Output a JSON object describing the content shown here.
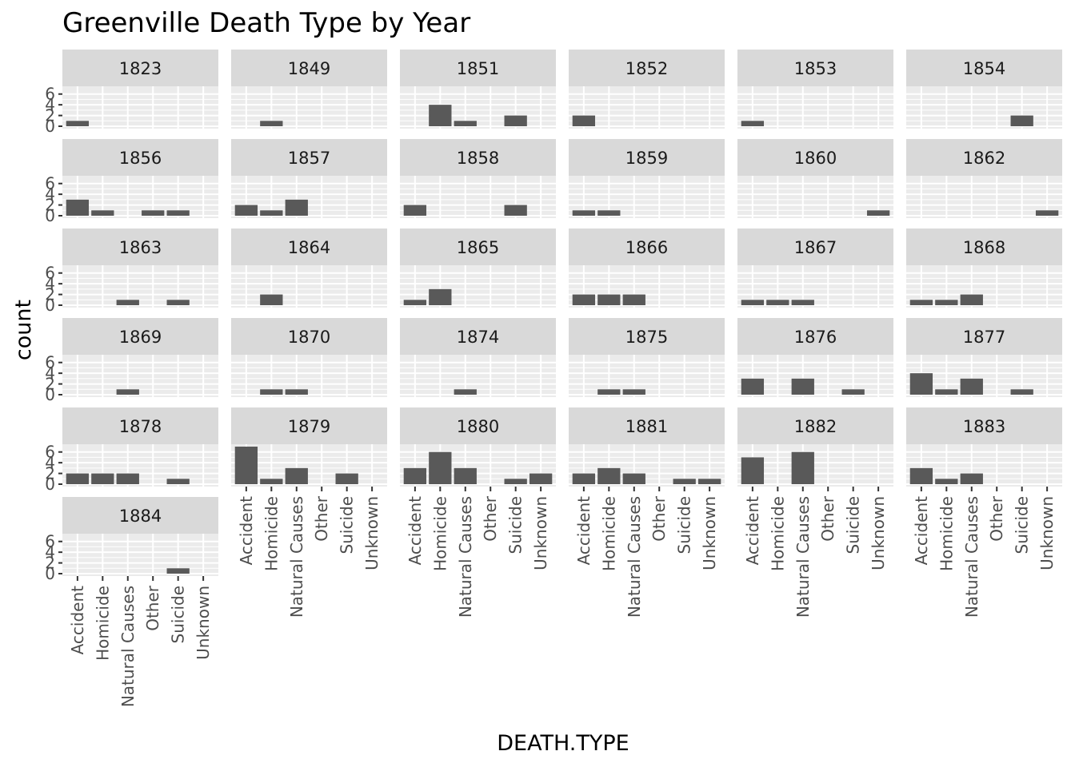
{
  "chart_data": {
    "type": "bar",
    "title": "Greenville Death Type by Year",
    "xlabel": "DEATH.TYPE",
    "ylabel": "count",
    "categories": [
      "Accident",
      "Homicide",
      "Natural Causes",
      "Other",
      "Suicide",
      "Unknown"
    ],
    "yticks": [
      0,
      2,
      4,
      6
    ],
    "ylim": [
      0,
      7
    ],
    "grid": true,
    "legend": "none",
    "colors": {
      "bar": "#595959",
      "panel": "#ebebeb",
      "strip": "#d9d9d9",
      "grid": "#ffffff"
    },
    "facets": [
      {
        "label": "1823",
        "values": [
          1,
          0,
          0,
          0,
          0,
          0
        ]
      },
      {
        "label": "1849",
        "values": [
          0,
          1,
          0,
          0,
          0,
          0
        ]
      },
      {
        "label": "1851",
        "values": [
          0,
          4,
          1,
          0,
          2,
          0
        ]
      },
      {
        "label": "1852",
        "values": [
          2,
          0,
          0,
          0,
          0,
          0
        ]
      },
      {
        "label": "1853",
        "values": [
          1,
          0,
          0,
          0,
          0,
          0
        ]
      },
      {
        "label": "1854",
        "values": [
          0,
          0,
          0,
          0,
          2,
          0
        ]
      },
      {
        "label": "1856",
        "values": [
          3,
          1,
          0,
          1,
          1,
          0
        ]
      },
      {
        "label": "1857",
        "values": [
          2,
          1,
          3,
          0,
          0,
          0
        ]
      },
      {
        "label": "1858",
        "values": [
          2,
          0,
          0,
          0,
          2,
          0
        ]
      },
      {
        "label": "1859",
        "values": [
          1,
          1,
          0,
          0,
          0,
          0
        ]
      },
      {
        "label": "1860",
        "values": [
          0,
          0,
          0,
          0,
          0,
          1
        ]
      },
      {
        "label": "1862",
        "values": [
          0,
          0,
          0,
          0,
          0,
          1
        ]
      },
      {
        "label": "1863",
        "values": [
          0,
          0,
          1,
          0,
          1,
          0
        ]
      },
      {
        "label": "1864",
        "values": [
          0,
          2,
          0,
          0,
          0,
          0
        ]
      },
      {
        "label": "1865",
        "values": [
          1,
          3,
          0,
          0,
          0,
          0
        ]
      },
      {
        "label": "1866",
        "values": [
          2,
          2,
          2,
          0,
          0,
          0
        ]
      },
      {
        "label": "1867",
        "values": [
          1,
          1,
          1,
          0,
          0,
          0
        ]
      },
      {
        "label": "1868",
        "values": [
          1,
          1,
          2,
          0,
          0,
          0
        ]
      },
      {
        "label": "1869",
        "values": [
          0,
          0,
          1,
          0,
          0,
          0
        ]
      },
      {
        "label": "1870",
        "values": [
          0,
          1,
          1,
          0,
          0,
          0
        ]
      },
      {
        "label": "1874",
        "values": [
          0,
          0,
          1,
          0,
          0,
          0
        ]
      },
      {
        "label": "1875",
        "values": [
          0,
          1,
          1,
          0,
          0,
          0
        ]
      },
      {
        "label": "1876",
        "values": [
          3,
          0,
          3,
          0,
          1,
          0
        ]
      },
      {
        "label": "1877",
        "values": [
          4,
          1,
          3,
          0,
          1,
          0
        ]
      },
      {
        "label": "1878",
        "values": [
          2,
          2,
          2,
          0,
          1,
          0
        ]
      },
      {
        "label": "1879",
        "values": [
          7,
          1,
          3,
          0,
          2,
          0
        ]
      },
      {
        "label": "1880",
        "values": [
          3,
          6,
          3,
          0,
          1,
          2
        ]
      },
      {
        "label": "1881",
        "values": [
          2,
          3,
          2,
          0,
          1,
          1
        ]
      },
      {
        "label": "1882",
        "values": [
          5,
          0,
          6,
          0,
          0,
          0
        ]
      },
      {
        "label": "1883",
        "values": [
          3,
          1,
          2,
          0,
          0,
          0
        ]
      },
      {
        "label": "1884",
        "values": [
          0,
          0,
          0,
          0,
          1,
          0
        ]
      }
    ]
  }
}
